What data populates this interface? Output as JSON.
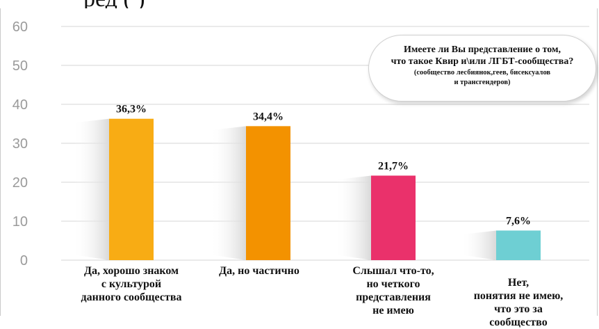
{
  "header": {
    "partial_text": "ред        (     )"
  },
  "chart_data": {
    "type": "bar",
    "categories": [
      "Да, хорошо знаком с культурой данного сообщества",
      "Да, но частично",
      "Слышал что-то, но четкого представления не имею",
      "Нет, понятия не имею, что это за сообщество"
    ],
    "category_lines": [
      [
        "Да, хорошо знаком",
        "с культурой",
        "данного сообщества"
      ],
      [
        "Да, но частично"
      ],
      [
        "Слышал что-то,",
        "но четкого",
        "представления",
        "не имею"
      ],
      [
        "Нет,",
        "понятия не имею,",
        "что это за",
        "сообщество"
      ]
    ],
    "values": [
      36.3,
      34.4,
      21.7,
      7.6
    ],
    "data_labels": [
      "36,3%",
      "34,4%",
      "21,7%",
      "7,6%"
    ],
    "colors": [
      "#f8ac14",
      "#f39200",
      "#ea316b",
      "#6ecfd3"
    ],
    "ylim": [
      0,
      60
    ],
    "yticks": [
      "0",
      "10",
      "20",
      "30",
      "40",
      "50",
      "60"
    ],
    "grid": true,
    "title": "",
    "xlabel": "",
    "ylabel": ""
  },
  "callout": {
    "question_line1": "Имеете ли Вы представление о том,",
    "question_line2": "что такое Квир и\\или ЛГБТ-сообщества?",
    "note_line1": "(сообщество лесбиянок,геев, бисексуалов",
    "note_line2": "и трансгендеров)"
  }
}
